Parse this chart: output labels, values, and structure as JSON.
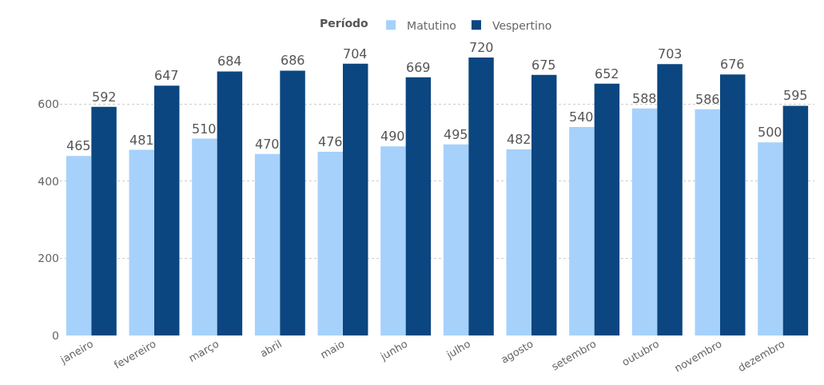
{
  "chart_data": {
    "type": "bar",
    "legend_title": "Período",
    "legend": "top",
    "categories": [
      "janeiro",
      "fevereiro",
      "março",
      "abril",
      "maio",
      "junho",
      "julho",
      "agosto",
      "setembro",
      "outubro",
      "novembro",
      "dezembro"
    ],
    "series": [
      {
        "name": "Matutino",
        "color": "#a6d1fb",
        "values": [
          465,
          481,
          510,
          470,
          476,
          490,
          495,
          482,
          540,
          588,
          586,
          500
        ]
      },
      {
        "name": "Vespertino",
        "color": "#0b4680",
        "values": [
          592,
          647,
          684,
          686,
          704,
          669,
          720,
          675,
          652,
          703,
          676,
          595
        ]
      }
    ],
    "ylim": [
      0,
      720
    ],
    "yticks": [
      0,
      200,
      400,
      600
    ],
    "grid": "y",
    "data_labels": true
  }
}
